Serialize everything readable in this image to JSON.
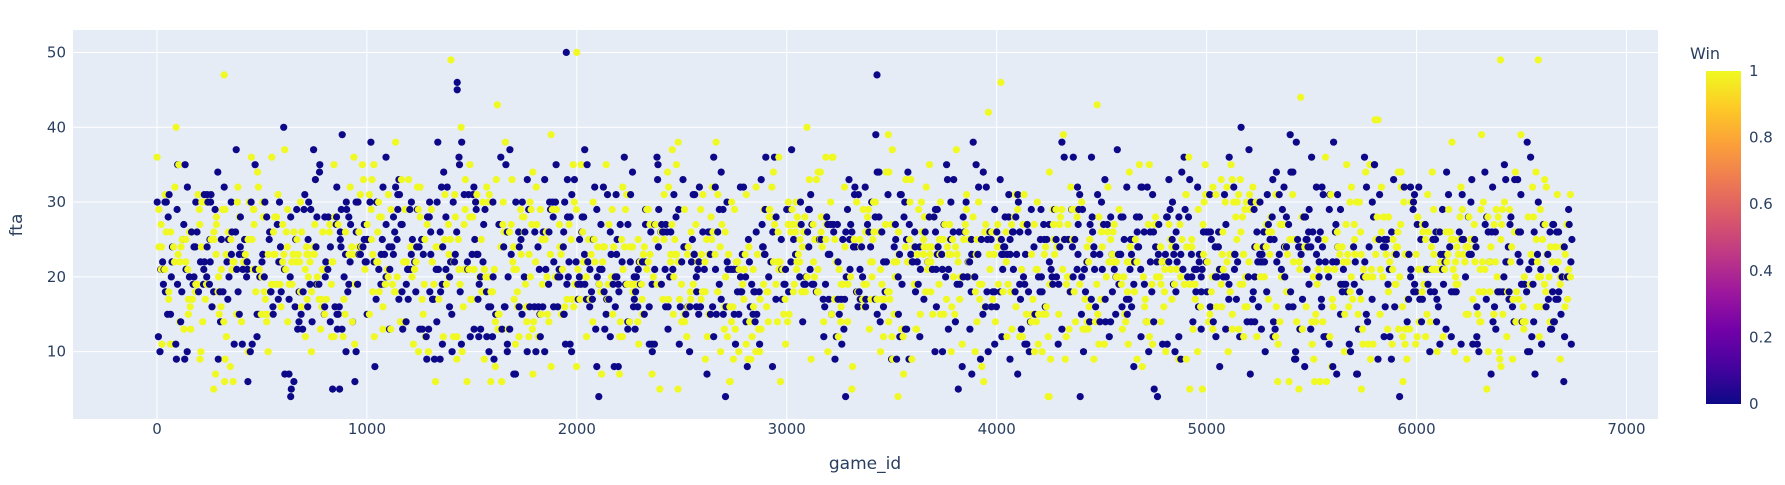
{
  "chart_data": {
    "type": "scatter",
    "title": "",
    "xlabel": "game_id",
    "ylabel": "fta",
    "xlim": [
      -400,
      7150
    ],
    "ylim": [
      1,
      53
    ],
    "x_ticks": [
      0,
      1000,
      2000,
      3000,
      4000,
      5000,
      6000,
      7000
    ],
    "y_ticks": [
      10,
      20,
      30,
      40,
      50
    ],
    "x_tick_labels": [
      "0",
      "1000",
      "2000",
      "3000",
      "4000",
      "5000",
      "6000",
      "7000"
    ],
    "y_tick_labels": [
      "10",
      "20",
      "30",
      "40",
      "50"
    ],
    "grid": true,
    "color_variable": "Win",
    "colorscale": "plasma",
    "colors": {
      "plot_bg": "#e5ecf6",
      "grid": "#ffffff",
      "loss": "#0d0887",
      "win": "#f0f921"
    },
    "colorbar": {
      "title": "Win",
      "range": [
        0,
        1
      ],
      "ticks": [
        "0",
        "0.2",
        "0.4",
        "0.6",
        "0.8",
        "1"
      ]
    },
    "points": {
      "x_range": [
        0,
        6740
      ],
      "y_range": [
        4,
        50
      ],
      "count": 2700,
      "note_values": "approximate: fta mostly 10–35, centered near 22"
    },
    "highlight_points": [
      {
        "x": 1950,
        "y": 50,
        "win": 0
      },
      {
        "x": 2000,
        "y": 50,
        "win": 1
      },
      {
        "x": 1400,
        "y": 49,
        "win": 1
      },
      {
        "x": 320,
        "y": 47,
        "win": 1
      },
      {
        "x": 3430,
        "y": 47,
        "win": 0
      },
      {
        "x": 6400,
        "y": 49,
        "win": 1
      },
      {
        "x": 6580,
        "y": 49,
        "win": 1
      },
      {
        "x": 4020,
        "y": 46,
        "win": 1
      },
      {
        "x": 1430,
        "y": 46,
        "win": 0
      },
      {
        "x": 1430,
        "y": 45,
        "win": 0
      },
      {
        "x": 3280,
        "y": 4,
        "win": 0
      },
      {
        "x": 3530,
        "y": 4,
        "win": 1
      },
      {
        "x": 4250,
        "y": 4,
        "win": 1
      },
      {
        "x": 270,
        "y": 5,
        "win": 1
      },
      {
        "x": 640,
        "y": 5,
        "win": 0
      },
      {
        "x": 870,
        "y": 5,
        "win": 0
      },
      {
        "x": 4750,
        "y": 5,
        "win": 0
      },
      {
        "x": 5440,
        "y": 5,
        "win": 1
      },
      {
        "x": 4980,
        "y": 5,
        "win": 1
      }
    ]
  }
}
